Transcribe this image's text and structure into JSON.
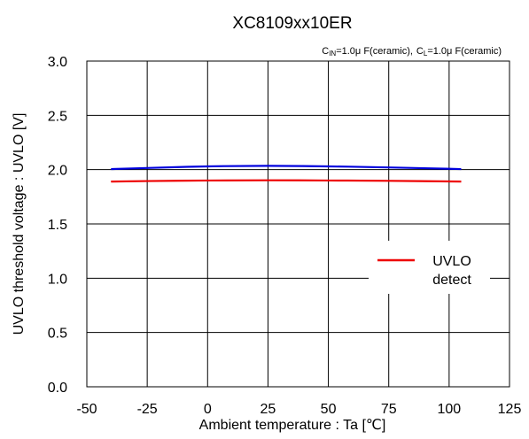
{
  "chart_data": {
    "type": "line",
    "title": "XC8109xx10ER",
    "conditions": {
      "cin_label": "C",
      "cin_sub": "IN",
      "cin_value": "=1.0μ F(ceramic),",
      "cl_label": "C",
      "cl_sub": "L",
      "cl_value": "=1.0μ F(ceramic)"
    },
    "xlabel": "Ambient temperature : Ta [℃]",
    "ylabel": "UVLO threshold voltage : UVLO [V]",
    "xlim": [
      -50,
      125
    ],
    "ylim": [
      0.0,
      3.0
    ],
    "xticks": [
      -50,
      -25,
      0,
      25,
      50,
      75,
      100,
      125
    ],
    "xtick_labels": [
      "-50",
      "-25",
      "0",
      "25",
      "50",
      "75",
      "100",
      "125"
    ],
    "yticks": [
      0.0,
      0.5,
      1.0,
      1.5,
      2.0,
      2.5,
      3.0
    ],
    "ytick_labels": [
      "0.0",
      "0.5",
      "1.0",
      "1.5",
      "2.0",
      "2.5",
      "3.0"
    ],
    "grid": true,
    "legend": {
      "placement": "center-right",
      "entries": [
        {
          "series_index": 1,
          "label_lines": [
            "UVLO",
            "detect"
          ]
        }
      ]
    },
    "series": [
      {
        "color": "#0000dd",
        "x": [
          -40,
          -25,
          0,
          25,
          50,
          75,
          105
        ],
        "y": [
          2.005,
          2.015,
          2.03,
          2.035,
          2.03,
          2.02,
          2.005
        ]
      },
      {
        "name": "UVLO detect",
        "color": "#ee0000",
        "x": [
          -40,
          -25,
          0,
          25,
          50,
          75,
          105
        ],
        "y": [
          1.89,
          1.895,
          1.9,
          1.902,
          1.9,
          1.897,
          1.89
        ]
      }
    ]
  }
}
